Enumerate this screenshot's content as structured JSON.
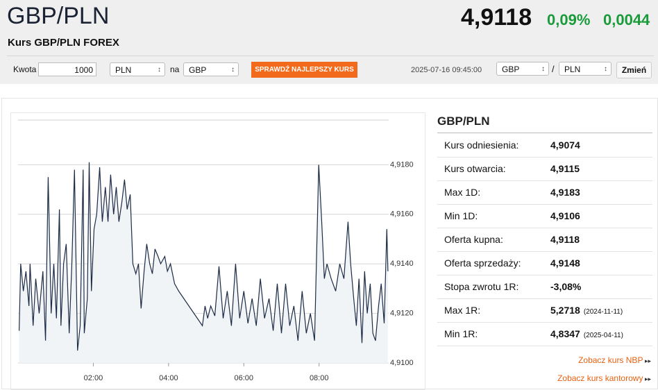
{
  "header": {
    "title": "GBP/PLN",
    "subtitle": "Kurs GBP/PLN FOREX",
    "price": "4,9118",
    "change_pct": "0,09%",
    "change_abs": "0,0044"
  },
  "toolbar": {
    "amount_label": "Kwota",
    "amount": "1000",
    "from": "PLN",
    "na": "na",
    "to": "GBP",
    "button": "SPRAWDŹ NAJLEPSZY KURS",
    "timestamp": "2025-07-16 09:45:00",
    "pair_from": "GBP",
    "separator": "/",
    "pair_to": "PLN",
    "change_button": "Zmień"
  },
  "chart_data": {
    "type": "line",
    "color": "#1c2b45",
    "x": [
      0.03,
      0.07,
      0.14,
      0.21,
      0.29,
      0.32,
      0.4,
      0.47,
      0.56,
      0.66,
      0.73,
      0.8,
      0.88,
      0.95,
      1.02,
      1.1,
      1.14,
      1.21,
      1.28,
      1.36,
      1.43,
      1.5,
      1.58,
      1.65,
      1.73,
      1.76,
      1.84,
      1.89,
      1.95,
      2.02,
      2.09,
      2.17,
      2.24,
      2.32,
      2.39,
      2.46,
      2.54,
      2.61,
      2.68,
      2.76,
      2.83,
      2.9,
      2.98,
      3.05,
      3.13,
      3.2,
      3.27,
      3.35,
      3.42,
      3.5,
      3.57,
      3.64,
      3.72,
      3.79,
      3.9,
      3.97,
      4.05,
      4.16,
      4.27,
      4.9,
      4.97,
      5.04,
      5.12,
      5.23,
      5.34,
      5.45,
      5.56,
      5.67,
      5.78,
      5.89,
      6.0,
      6.11,
      6.22,
      6.33,
      6.44,
      6.55,
      6.67,
      6.78,
      6.89,
      7.0,
      7.11,
      7.22,
      7.33,
      7.44,
      7.55,
      7.66,
      7.77,
      7.88,
      7.99,
      8.07,
      8.14,
      8.21,
      8.32,
      8.44,
      8.55,
      8.66,
      8.77,
      8.84,
      8.92,
      8.99,
      9.06,
      9.14,
      9.21,
      9.28,
      9.36,
      9.43,
      9.5,
      9.58,
      9.65,
      9.73,
      9.8,
      9.83
    ],
    "values": [
      4.9113,
      4.914,
      4.9129,
      4.9137,
      4.9123,
      4.914,
      4.9115,
      4.9134,
      4.912,
      4.9137,
      4.9109,
      4.9175,
      4.912,
      4.914,
      4.9118,
      4.9162,
      4.9115,
      4.914,
      4.9148,
      4.9112,
      4.914,
      4.9178,
      4.9105,
      4.9115,
      4.9178,
      4.9112,
      4.9126,
      4.9181,
      4.9129,
      4.9154,
      4.916,
      4.9179,
      4.9157,
      4.9171,
      4.9157,
      4.9176,
      4.916,
      4.9171,
      4.9157,
      4.9165,
      4.9174,
      4.9162,
      4.9168,
      4.914,
      4.9136,
      4.914,
      4.9122,
      4.9137,
      4.9148,
      4.914,
      4.9136,
      4.9146,
      4.9143,
      4.914,
      4.9143,
      4.9137,
      4.914,
      4.9132,
      4.9129,
      4.9115,
      4.9123,
      4.9118,
      4.9123,
      4.9119,
      4.9139,
      4.9118,
      4.9129,
      4.9115,
      4.914,
      4.9118,
      4.9129,
      4.9116,
      4.9126,
      4.9115,
      4.9134,
      4.9118,
      4.9126,
      4.9113,
      4.9132,
      4.9112,
      4.9132,
      4.9115,
      4.9123,
      4.9109,
      4.9129,
      4.9112,
      4.912,
      4.9109,
      4.918,
      4.9157,
      4.9134,
      4.914,
      4.9134,
      4.9129,
      4.914,
      4.9134,
      4.9157,
      4.914,
      4.9126,
      4.9115,
      4.9134,
      4.9108,
      4.9137,
      4.912,
      4.9132,
      4.9112,
      4.9109,
      4.9123,
      4.9132,
      4.9116,
      4.9154,
      4.9137
    ],
    "xlim": [
      0,
      9.85
    ],
    "ylim": [
      4.91,
      4.92
    ],
    "xticks": [
      {
        "value": 2,
        "label": "02:00"
      },
      {
        "value": 4,
        "label": "04:00"
      },
      {
        "value": 6,
        "label": "06:00"
      },
      {
        "value": 8,
        "label": "08:00"
      }
    ],
    "yticks": [
      {
        "value": 4.91,
        "label": "4,9100"
      },
      {
        "value": 4.912,
        "label": "4,9120"
      },
      {
        "value": 4.914,
        "label": "4,9140"
      },
      {
        "value": 4.916,
        "label": "4,9160"
      },
      {
        "value": 4.918,
        "label": "4,9180"
      }
    ],
    "grid": true
  },
  "panel": {
    "title": "GBP/PLN",
    "rows": [
      {
        "label": "Kurs odniesienia:",
        "value": "4,9074"
      },
      {
        "label": "Kurs otwarcia:",
        "value": "4,9115"
      },
      {
        "label": "Max 1D:",
        "value": "4,9183"
      },
      {
        "label": "Min 1D:",
        "value": "4,9106"
      },
      {
        "label": "Oferta kupna:",
        "value": "4,9118"
      },
      {
        "label": "Oferta sprzedaży:",
        "value": "4,9148"
      },
      {
        "label": "Stopa zwrotu 1R:",
        "value": "-3,08%"
      },
      {
        "label": "Max 1R:",
        "value": "5,2718",
        "date": "(2024-11-11)"
      },
      {
        "label": "Min 1R:",
        "value": "4,8347",
        "date": "(2025-04-11)"
      }
    ],
    "links": [
      "Zobacz kurs NBP",
      "Zobacz kurs kantorowy"
    ]
  }
}
